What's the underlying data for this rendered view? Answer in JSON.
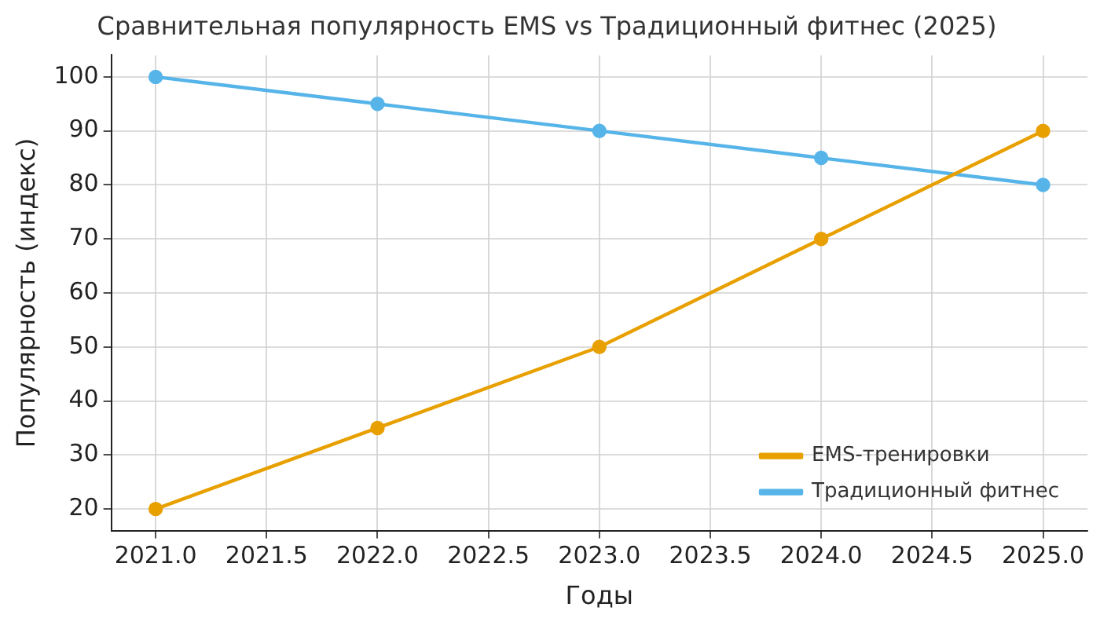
{
  "chart_data": {
    "type": "line",
    "title": "Сравнительная популярность EMS vs Традиционный фитнес (2025)",
    "xlabel": "Годы",
    "ylabel": "Популярность (индекс)",
    "x": [
      2021,
      2022,
      2023,
      2024,
      2025
    ],
    "series": [
      {
        "name": "EMS-тренировки",
        "color": "#e8a000",
        "values": [
          20,
          35,
          50,
          70,
          90
        ]
      },
      {
        "name": "Традиционный фитнес",
        "color": "#56b4e9",
        "values": [
          100,
          95,
          90,
          85,
          80
        ]
      }
    ],
    "xlim": [
      2020.8,
      2025.2
    ],
    "xticks": [
      {
        "value": 2021,
        "label": "2021.0"
      },
      {
        "value": 2021.5,
        "label": "2021.5"
      },
      {
        "value": 2022,
        "label": "2022.0"
      },
      {
        "value": 2022.5,
        "label": "2022.5"
      },
      {
        "value": 2023,
        "label": "2023.0"
      },
      {
        "value": 2023.5,
        "label": "2023.5"
      },
      {
        "value": 2024,
        "label": "2024.0"
      },
      {
        "value": 2024.5,
        "label": "2024.5"
      },
      {
        "value": 2025,
        "label": "2025.0"
      }
    ],
    "ylim": [
      16,
      104
    ],
    "yticks": [
      20,
      30,
      40,
      50,
      60,
      70,
      80,
      90,
      100
    ],
    "grid": true,
    "legend": "bottom right",
    "marker": "circle",
    "line_style": "solid"
  }
}
